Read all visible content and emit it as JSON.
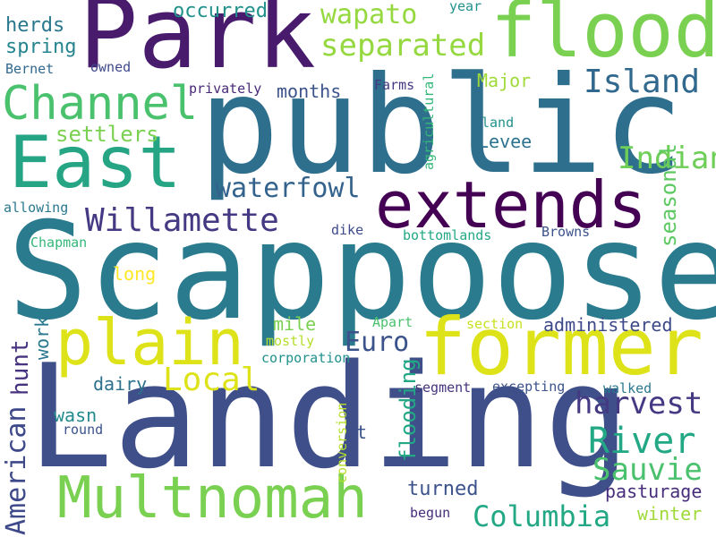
{
  "words": [
    {
      "text": "Scappoose",
      "color": "#2a7b8e"
    },
    {
      "text": "Landing",
      "color": "#3f4f8a"
    },
    {
      "text": "public",
      "color": "#2f6f8e"
    },
    {
      "text": "Park",
      "color": "#481b6d"
    },
    {
      "text": "former",
      "color": "#dde318"
    },
    {
      "text": "flood",
      "color": "#7ad151"
    },
    {
      "text": "extends",
      "color": "#440154"
    },
    {
      "text": "East",
      "color": "#25a584"
    },
    {
      "text": "Multnomah",
      "color": "#7ad151"
    },
    {
      "text": "plain",
      "color": "#dde318"
    },
    {
      "text": "Channel",
      "color": "#4ac16d"
    },
    {
      "text": "separated",
      "color": "#95d840"
    },
    {
      "text": "wapato",
      "color": "#95d840"
    },
    {
      "text": "Island",
      "color": "#31688e"
    },
    {
      "text": "Willamette",
      "color": "#443983"
    },
    {
      "text": "waterfowl",
      "color": "#33638d"
    },
    {
      "text": "River",
      "color": "#22a884"
    },
    {
      "text": "Sauvie",
      "color": "#4ac16d"
    },
    {
      "text": "Columbia",
      "color": "#22a884"
    },
    {
      "text": "harvest",
      "color": "#443983"
    },
    {
      "text": "Local",
      "color": "#dde318"
    },
    {
      "text": "Euro",
      "color": "#3b528b"
    },
    {
      "text": "Indians",
      "color": "#6ece58"
    },
    {
      "text": "seasonal",
      "color": "#5ec962"
    },
    {
      "text": "American",
      "color": "#3e4989"
    },
    {
      "text": "hunt",
      "color": "#46327e"
    },
    {
      "text": "flooding",
      "color": "#22a884"
    },
    {
      "text": "settlers",
      "color": "#7ad151"
    },
    {
      "text": "spring",
      "color": "#25848e"
    },
    {
      "text": "herds",
      "color": "#2a788e"
    },
    {
      "text": "occurred",
      "color": "#21918c"
    },
    {
      "text": "Levee",
      "color": "#2c728e"
    },
    {
      "text": "months",
      "color": "#3b528b"
    },
    {
      "text": "Major",
      "color": "#a0da39"
    },
    {
      "text": "turned",
      "color": "#3b528b"
    },
    {
      "text": "pasturage",
      "color": "#472d7b"
    },
    {
      "text": "administered",
      "color": "#3e4989"
    },
    {
      "text": "dairy",
      "color": "#2d708e"
    },
    {
      "text": "wasn",
      "color": "#238a8d"
    },
    {
      "text": "winter",
      "color": "#a0da39"
    },
    {
      "text": "mile",
      "color": "#7ad151"
    },
    {
      "text": "long",
      "color": "#fde725"
    },
    {
      "text": "work",
      "color": "#2a788e"
    },
    {
      "text": "privately",
      "color": "#482878"
    },
    {
      "text": "Farms",
      "color": "#443983"
    },
    {
      "text": "agricultural",
      "color": "#35b779"
    },
    {
      "text": "Bernet",
      "color": "#31688e"
    },
    {
      "text": "owned",
      "color": "#3e4989"
    },
    {
      "text": "year",
      "color": "#21918c"
    },
    {
      "text": "land",
      "color": "#21918c"
    },
    {
      "text": "allowing",
      "color": "#2a788e"
    },
    {
      "text": "Chapman",
      "color": "#35b779"
    },
    {
      "text": "dike",
      "color": "#3e4a89"
    },
    {
      "text": "bottomlands",
      "color": "#22a884"
    },
    {
      "text": "Browns",
      "color": "#3b528b"
    },
    {
      "text": "mostly",
      "color": "#b5de2b"
    },
    {
      "text": "corporation",
      "color": "#21918c"
    },
    {
      "text": "Apart",
      "color": "#4ac16d"
    },
    {
      "text": "section",
      "color": "#c8e020"
    },
    {
      "text": "segment",
      "color": "#46337f"
    },
    {
      "text": "excepting",
      "color": "#3b528b"
    },
    {
      "text": "walked",
      "color": "#2a788e"
    },
    {
      "text": "round",
      "color": "#3b528b"
    },
    {
      "text": "conversion",
      "color": "#b5de2b"
    },
    {
      "text": "t",
      "color": "#3b528b"
    },
    {
      "text": "begun",
      "color": "#472d7b"
    }
  ]
}
